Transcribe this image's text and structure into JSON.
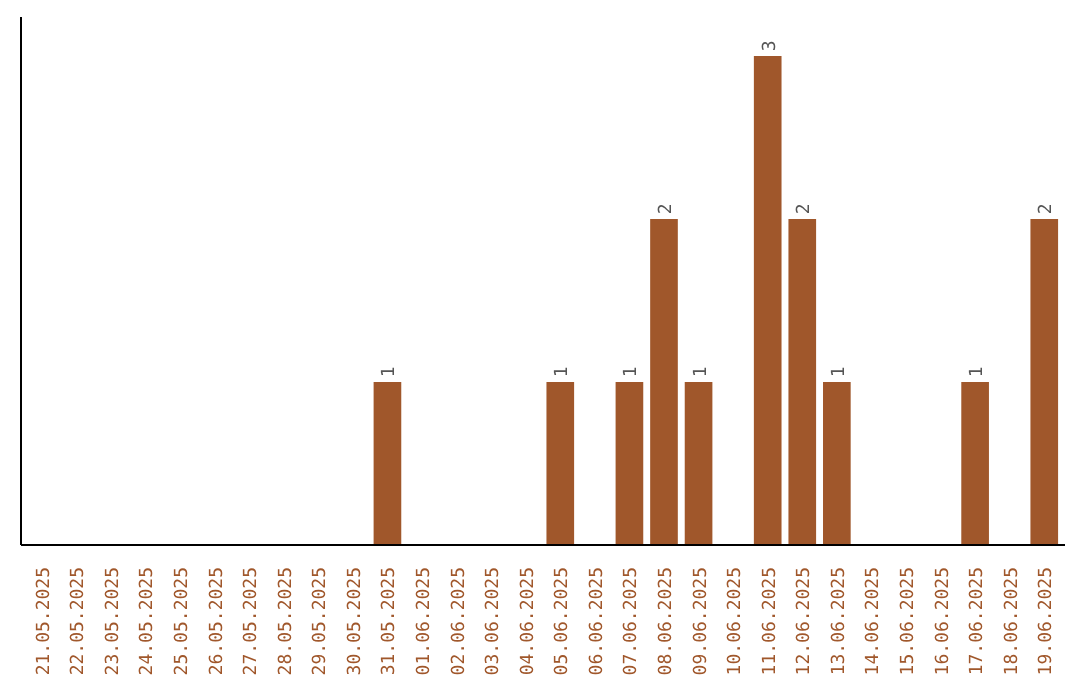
{
  "chart_data": {
    "type": "bar",
    "categories": [
      "21.05.2025",
      "22.05.2025",
      "23.05.2025",
      "24.05.2025",
      "25.05.2025",
      "26.05.2025",
      "27.05.2025",
      "28.05.2025",
      "29.05.2025",
      "30.05.2025",
      "31.05.2025",
      "01.06.2025",
      "02.06.2025",
      "03.06.2025",
      "04.06.2025",
      "05.06.2025",
      "06.06.2025",
      "07.06.2025",
      "08.06.2025",
      "09.06.2025",
      "10.06.2025",
      "11.06.2025",
      "12.06.2025",
      "13.06.2025",
      "14.06.2025",
      "15.06.2025",
      "16.06.2025",
      "17.06.2025",
      "18.06.2025",
      "19.06.2025"
    ],
    "values": [
      0,
      0,
      0,
      0,
      0,
      0,
      0,
      0,
      0,
      0,
      1,
      0,
      0,
      0,
      0,
      1,
      0,
      1,
      2,
      1,
      0,
      3,
      2,
      1,
      0,
      0,
      0,
      1,
      0,
      2
    ],
    "value_labels": [
      null,
      null,
      null,
      null,
      null,
      null,
      null,
      null,
      null,
      null,
      "1",
      null,
      null,
      null,
      null,
      "1",
      null,
      "1",
      "2",
      "1",
      null,
      "3",
      "2",
      "1",
      null,
      null,
      null,
      "1",
      null,
      "2"
    ],
    "color": "#a0572b",
    "grid": false,
    "tick_labels": "x"
  }
}
